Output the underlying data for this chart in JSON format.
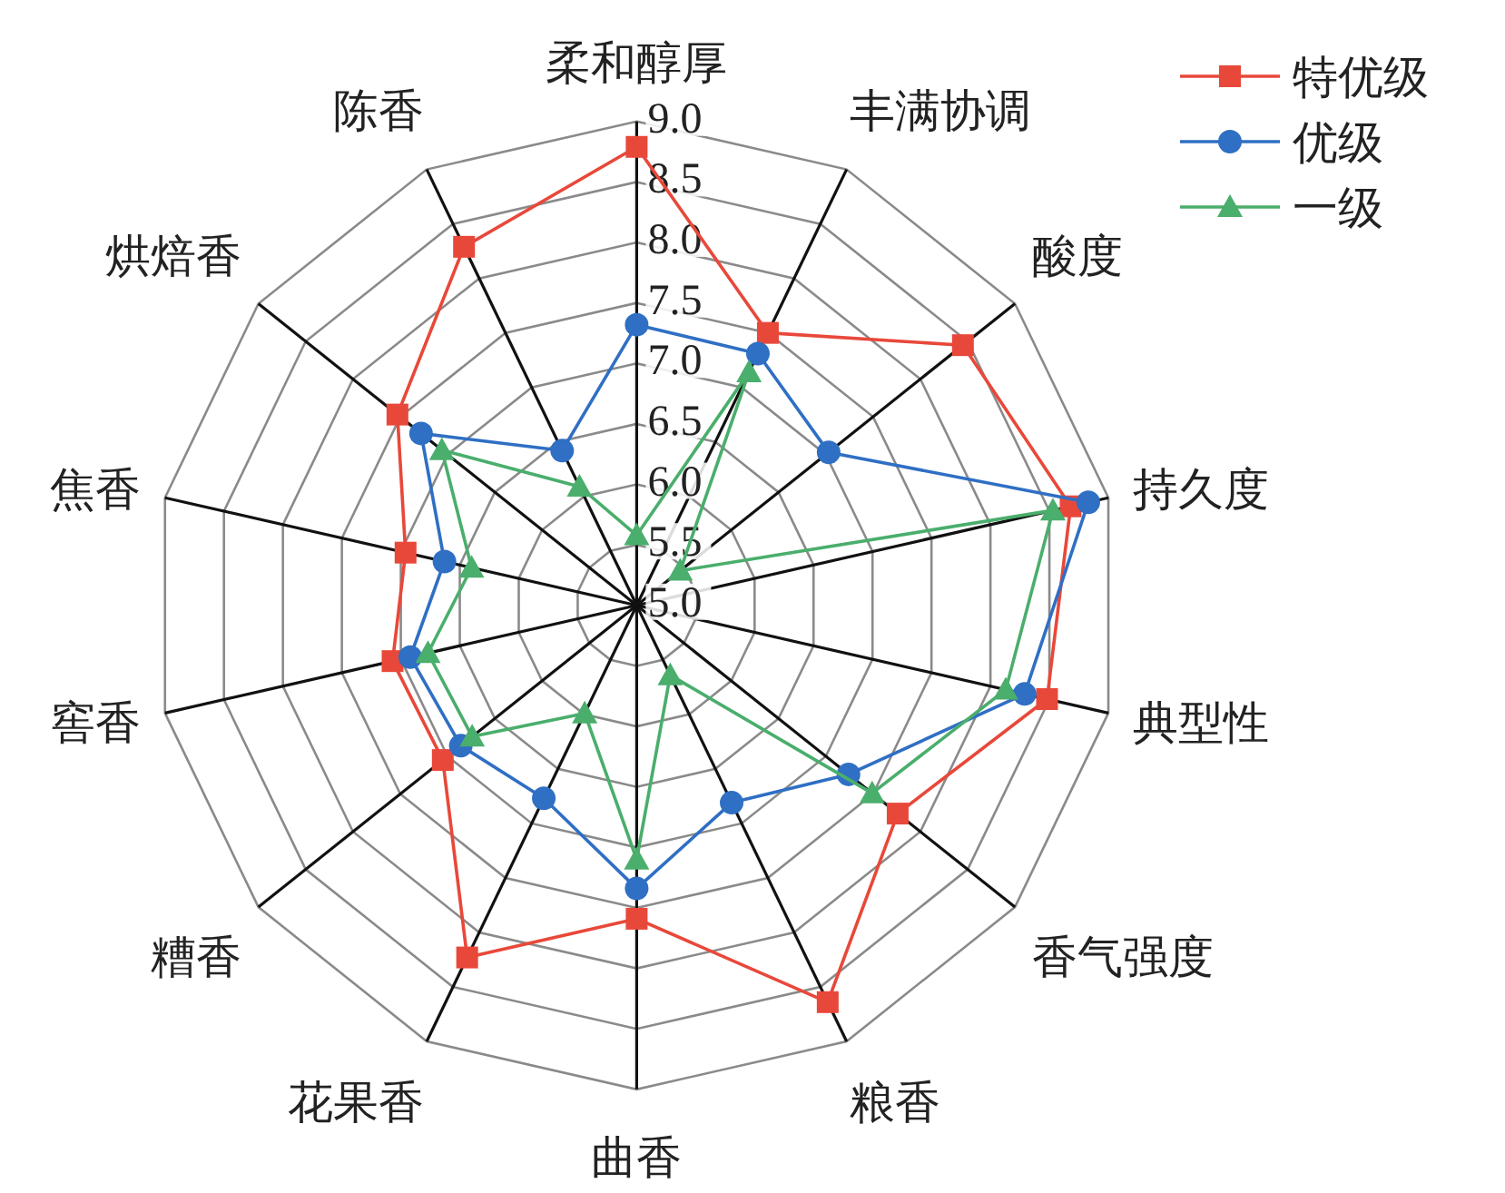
{
  "chart_data": {
    "type": "radar",
    "categories": [
      "柔和醇厚",
      "丰满协调",
      "酸度",
      "持久度",
      "典型性",
      "香气强度",
      "粮香",
      "曲香",
      "花果香",
      "糟香",
      "窖香",
      "焦香",
      "烘焙香",
      "陈香"
    ],
    "ylim": [
      5.0,
      9.0
    ],
    "yticks": [
      {
        "value": 5.0,
        "label": "5.0"
      },
      {
        "value": 5.5,
        "label": "5.5"
      },
      {
        "value": 6.0,
        "label": "6.0"
      },
      {
        "value": 6.5,
        "label": "6.5"
      },
      {
        "value": 7.0,
        "label": "7.0"
      },
      {
        "value": 7.5,
        "label": "7.5"
      },
      {
        "value": 8.0,
        "label": "8.0"
      },
      {
        "value": 8.5,
        "label": "8.5"
      },
      {
        "value": 9.0,
        "label": "9.0"
      }
    ],
    "grid": true,
    "legend": "top right",
    "series": [
      {
        "name": "特优级",
        "color": "#e8483a",
        "marker": "square",
        "values": [
          8.79,
          7.5,
          8.45,
          8.68,
          8.48,
          7.76,
          8.64,
          7.59,
          8.23,
          7.05,
          7.07,
          6.96,
          7.53,
          8.29
        ]
      },
      {
        "name": "优级",
        "color": "#2f6fc4",
        "marker": "circle",
        "values": [
          7.32,
          7.31,
          7.03,
          8.83,
          8.29,
          7.24,
          6.81,
          7.34,
          6.77,
          6.86,
          6.92,
          6.63,
          7.28,
          6.42
        ]
      },
      {
        "name": "一级",
        "color": "#4aae6c",
        "marker": "triangle",
        "values": [
          5.58,
          7.14,
          5.46,
          8.53,
          8.13,
          7.49,
          5.64,
          7.1,
          5.99,
          6.74,
          6.77,
          6.4,
          7.06,
          6.09
        ]
      }
    ]
  }
}
